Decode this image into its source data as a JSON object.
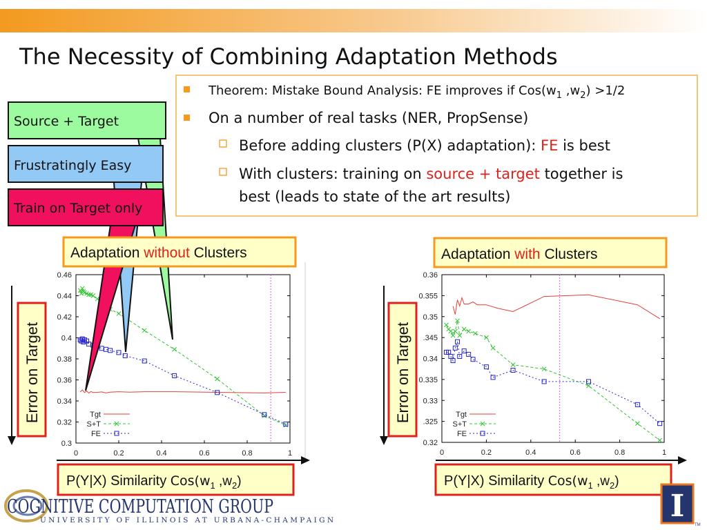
{
  "slide": {
    "title": "The Necessity of Combining Adaptation Methods"
  },
  "bullets": {
    "b1_main": "Theorem: Mistake Bound Analysis: FE improves if Cos(w",
    "b1_sub1": "1",
    "b1_mid": " ,w",
    "b1_sub2": "2",
    "b1_end": ") >1/2",
    "b2": "On a number of real tasks (NER, PropSense)",
    "b3_pre": "Before adding clusters (P(X) adaptation): ",
    "b3_red": "FE",
    "b3_post": " is best",
    "b4_pre": "With clusters: training on ",
    "b4_red": "source + target",
    "b4_post": " together is",
    "b4_line2": "best (leads to state of the art results)"
  },
  "callouts": {
    "source_target": "Source + Target",
    "frustratingly_easy": "Frustratingly Easy",
    "train_on_target": "Train on Target only",
    "colors": {
      "source_target": "#9dfb9f",
      "frustratingly_easy": "#93c9f5",
      "train_on_target": "#f0105e"
    }
  },
  "captions": {
    "left_pre": "Adaptation ",
    "left_red": "without",
    "left_post": " Clusters",
    "right_pre": "Adaptation ",
    "right_red": "with",
    "right_post": " Clusters",
    "error_on_target": "Error on Target",
    "sim_pre": "P(Y|X) Similarity ",
    "sim_cos": "Cos(w",
    "sim_sub1": "1",
    "sim_mid": " ,w",
    "sim_sub2": "2",
    "sim_end": ")"
  },
  "logo": {
    "name": "COGNITIVE COMPUTATION GROUP",
    "university": "UNIVERSITY OF ILLINOIS AT URBANA-CHAMPAIGN",
    "mark": "I",
    "tm": "TM"
  },
  "chart_data": [
    {
      "type": "line",
      "xlim": [
        0,
        1
      ],
      "ylim": [
        0.3,
        0.46
      ],
      "xticks": [
        "0",
        "0.2",
        "0.4",
        "0.6",
        "0.8",
        "1"
      ],
      "yticks": [
        "0.3",
        "0.32",
        "0.34",
        "0.36",
        "0.38",
        "0.4",
        "0.42",
        "0.44",
        "0.46"
      ],
      "vline": 0.91,
      "series": [
        {
          "name": "Tgt",
          "color": "#e0403a",
          "dash": "",
          "marker": "none",
          "x": [
            0.02,
            0.03,
            0.04,
            0.05,
            0.06,
            0.07,
            0.08,
            0.1,
            0.12,
            0.14,
            0.16,
            0.2,
            0.25,
            0.32,
            0.45,
            0.66,
            0.88,
            0.98
          ],
          "y": [
            0.3485,
            0.3505,
            0.348,
            0.3495,
            0.3475,
            0.349,
            0.348,
            0.3482,
            0.3486,
            0.3476,
            0.3484,
            0.3488,
            0.3484,
            0.3488,
            0.3488,
            0.3482,
            0.3476,
            0.3482
          ]
        },
        {
          "name": "S+T",
          "color": "#2ec42e",
          "dash": "4,3",
          "marker": "x",
          "x": [
            0.02,
            0.025,
            0.03,
            0.035,
            0.04,
            0.05,
            0.06,
            0.07,
            0.08,
            0.1,
            0.12,
            0.14,
            0.16,
            0.2,
            0.23,
            0.32,
            0.46,
            0.66,
            0.88,
            0.98
          ],
          "y": [
            0.445,
            0.442,
            0.447,
            0.444,
            0.443,
            0.442,
            0.441,
            0.441,
            0.44,
            0.437,
            0.435,
            0.432,
            0.427,
            0.423,
            0.419,
            0.407,
            0.389,
            0.361,
            0.326,
            0.317
          ]
        },
        {
          "name": "FE",
          "color": "#2222cc",
          "dash": "2,3",
          "marker": "square",
          "x": [
            0.02,
            0.025,
            0.03,
            0.035,
            0.04,
            0.05,
            0.06,
            0.08,
            0.1,
            0.12,
            0.14,
            0.16,
            0.2,
            0.23,
            0.32,
            0.46,
            0.66,
            0.88,
            0.98
          ],
          "y": [
            0.398,
            0.397,
            0.399,
            0.396,
            0.398,
            0.397,
            0.394,
            0.393,
            0.392,
            0.39,
            0.389,
            0.388,
            0.386,
            0.383,
            0.378,
            0.364,
            0.348,
            0.327,
            0.318
          ]
        }
      ]
    },
    {
      "type": "line",
      "xlim": [
        0,
        1
      ],
      "ylim": [
        0.32,
        0.36
      ],
      "xticks": [
        "0",
        "0.2",
        "0.4",
        "0.6",
        "0.8",
        "1"
      ],
      "yticks": [
        "0.32",
        ".325",
        "0.33",
        "0.335",
        "0.34",
        ".345",
        "0.35",
        "0.355",
        "0.36"
      ],
      "vline": 0.53,
      "series": [
        {
          "name": "Tgt",
          "color": "#e0403a",
          "dash": "",
          "marker": "none",
          "x": [
            0.05,
            0.06,
            0.07,
            0.08,
            0.09,
            0.1,
            0.12,
            0.14,
            0.16,
            0.2,
            0.25,
            0.32,
            0.46,
            0.66,
            0.88,
            0.98
          ],
          "y": [
            0.3525,
            0.3505,
            0.354,
            0.3525,
            0.3545,
            0.353,
            0.353,
            0.3535,
            0.3528,
            0.3528,
            0.352,
            0.3512,
            0.3548,
            0.3552,
            0.3528,
            0.3495
          ]
        },
        {
          "name": "S+T",
          "color": "#2ec42e",
          "dash": "4,3",
          "marker": "x",
          "x": [
            0.02,
            0.03,
            0.04,
            0.05,
            0.06,
            0.07,
            0.08,
            0.1,
            0.12,
            0.15,
            0.2,
            0.23,
            0.32,
            0.46,
            0.66,
            0.88,
            0.98
          ],
          "y": [
            0.348,
            0.347,
            0.3465,
            0.3455,
            0.3465,
            0.349,
            0.3455,
            0.347,
            0.3465,
            0.346,
            0.345,
            0.3425,
            0.3385,
            0.3375,
            0.3335,
            0.3245,
            0.3205
          ]
        },
        {
          "name": "FE",
          "color": "#2222cc",
          "dash": "2,3",
          "marker": "square",
          "x": [
            0.02,
            0.03,
            0.04,
            0.05,
            0.06,
            0.07,
            0.08,
            0.1,
            0.12,
            0.14,
            0.2,
            0.23,
            0.32,
            0.46,
            0.66,
            0.88,
            0.98
          ],
          "y": [
            0.3415,
            0.3415,
            0.3405,
            0.3395,
            0.3425,
            0.344,
            0.3405,
            0.3418,
            0.341,
            0.3398,
            0.338,
            0.3355,
            0.3372,
            0.3345,
            0.3345,
            0.329,
            0.3245
          ]
        }
      ]
    }
  ]
}
